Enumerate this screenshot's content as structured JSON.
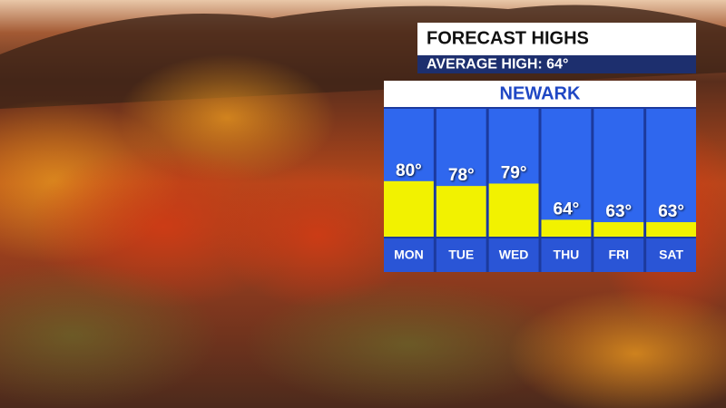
{
  "chart_data": {
    "type": "bar",
    "title": "FORECAST HIGHS",
    "subtitle": "AVERAGE HIGH: 64°",
    "location": "NEWARK",
    "categories": [
      "MON",
      "TUE",
      "WED",
      "THU",
      "FRI",
      "SAT"
    ],
    "values": [
      80,
      78,
      79,
      64,
      63,
      63
    ],
    "value_labels": [
      "80°",
      "78°",
      "79°",
      "64°",
      "63°",
      "63°"
    ],
    "color": "#f2f200",
    "ylim": [
      57,
      110
    ]
  }
}
